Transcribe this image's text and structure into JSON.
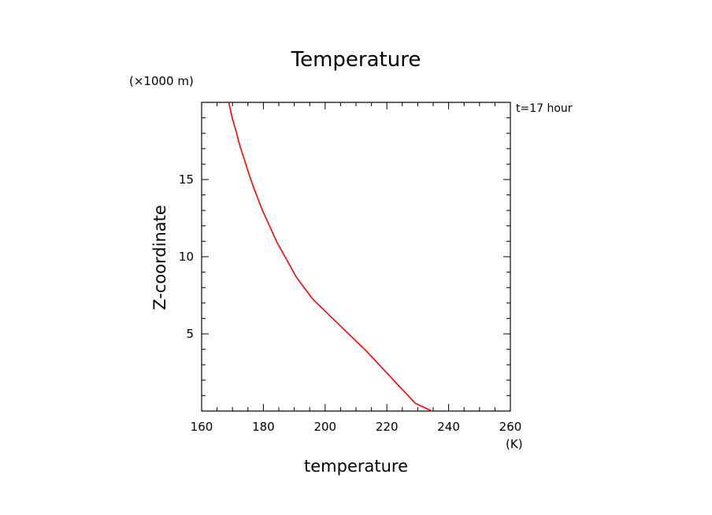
{
  "chart_data": {
    "type": "line",
    "title": "Temperature",
    "xlabel": "temperature",
    "ylabel": "Z-coordinate",
    "x_unit": "(K)",
    "y_unit": "(×1000 m)",
    "annotation": "t=17 hour",
    "xlim": [
      160,
      260
    ],
    "ylim": [
      0,
      20
    ],
    "x_ticks": [
      160,
      180,
      200,
      220,
      240,
      260
    ],
    "y_ticks": [
      5,
      10,
      15
    ],
    "x_tick_labels": [
      "160",
      "180",
      "200",
      "220",
      "240",
      "260"
    ],
    "y_tick_labels": [
      "5",
      "10",
      "15"
    ],
    "grid": false,
    "series": [
      {
        "color": "#ff0000",
        "x": [
          234.6,
          229.2,
          213.3,
          197.8,
          195.8,
          190.6,
          187.3,
          184.5,
          182.0,
          179.7,
          177.2,
          175.4,
          173.7,
          172.5,
          171.2,
          169.9,
          168.8
        ],
        "y": [
          0.0,
          0.5,
          3.9,
          6.9,
          7.3,
          8.7,
          9.9,
          10.9,
          12.0,
          13.0,
          14.3,
          15.3,
          16.4,
          17.1,
          18.1,
          19.0,
          20.0
        ]
      }
    ]
  }
}
